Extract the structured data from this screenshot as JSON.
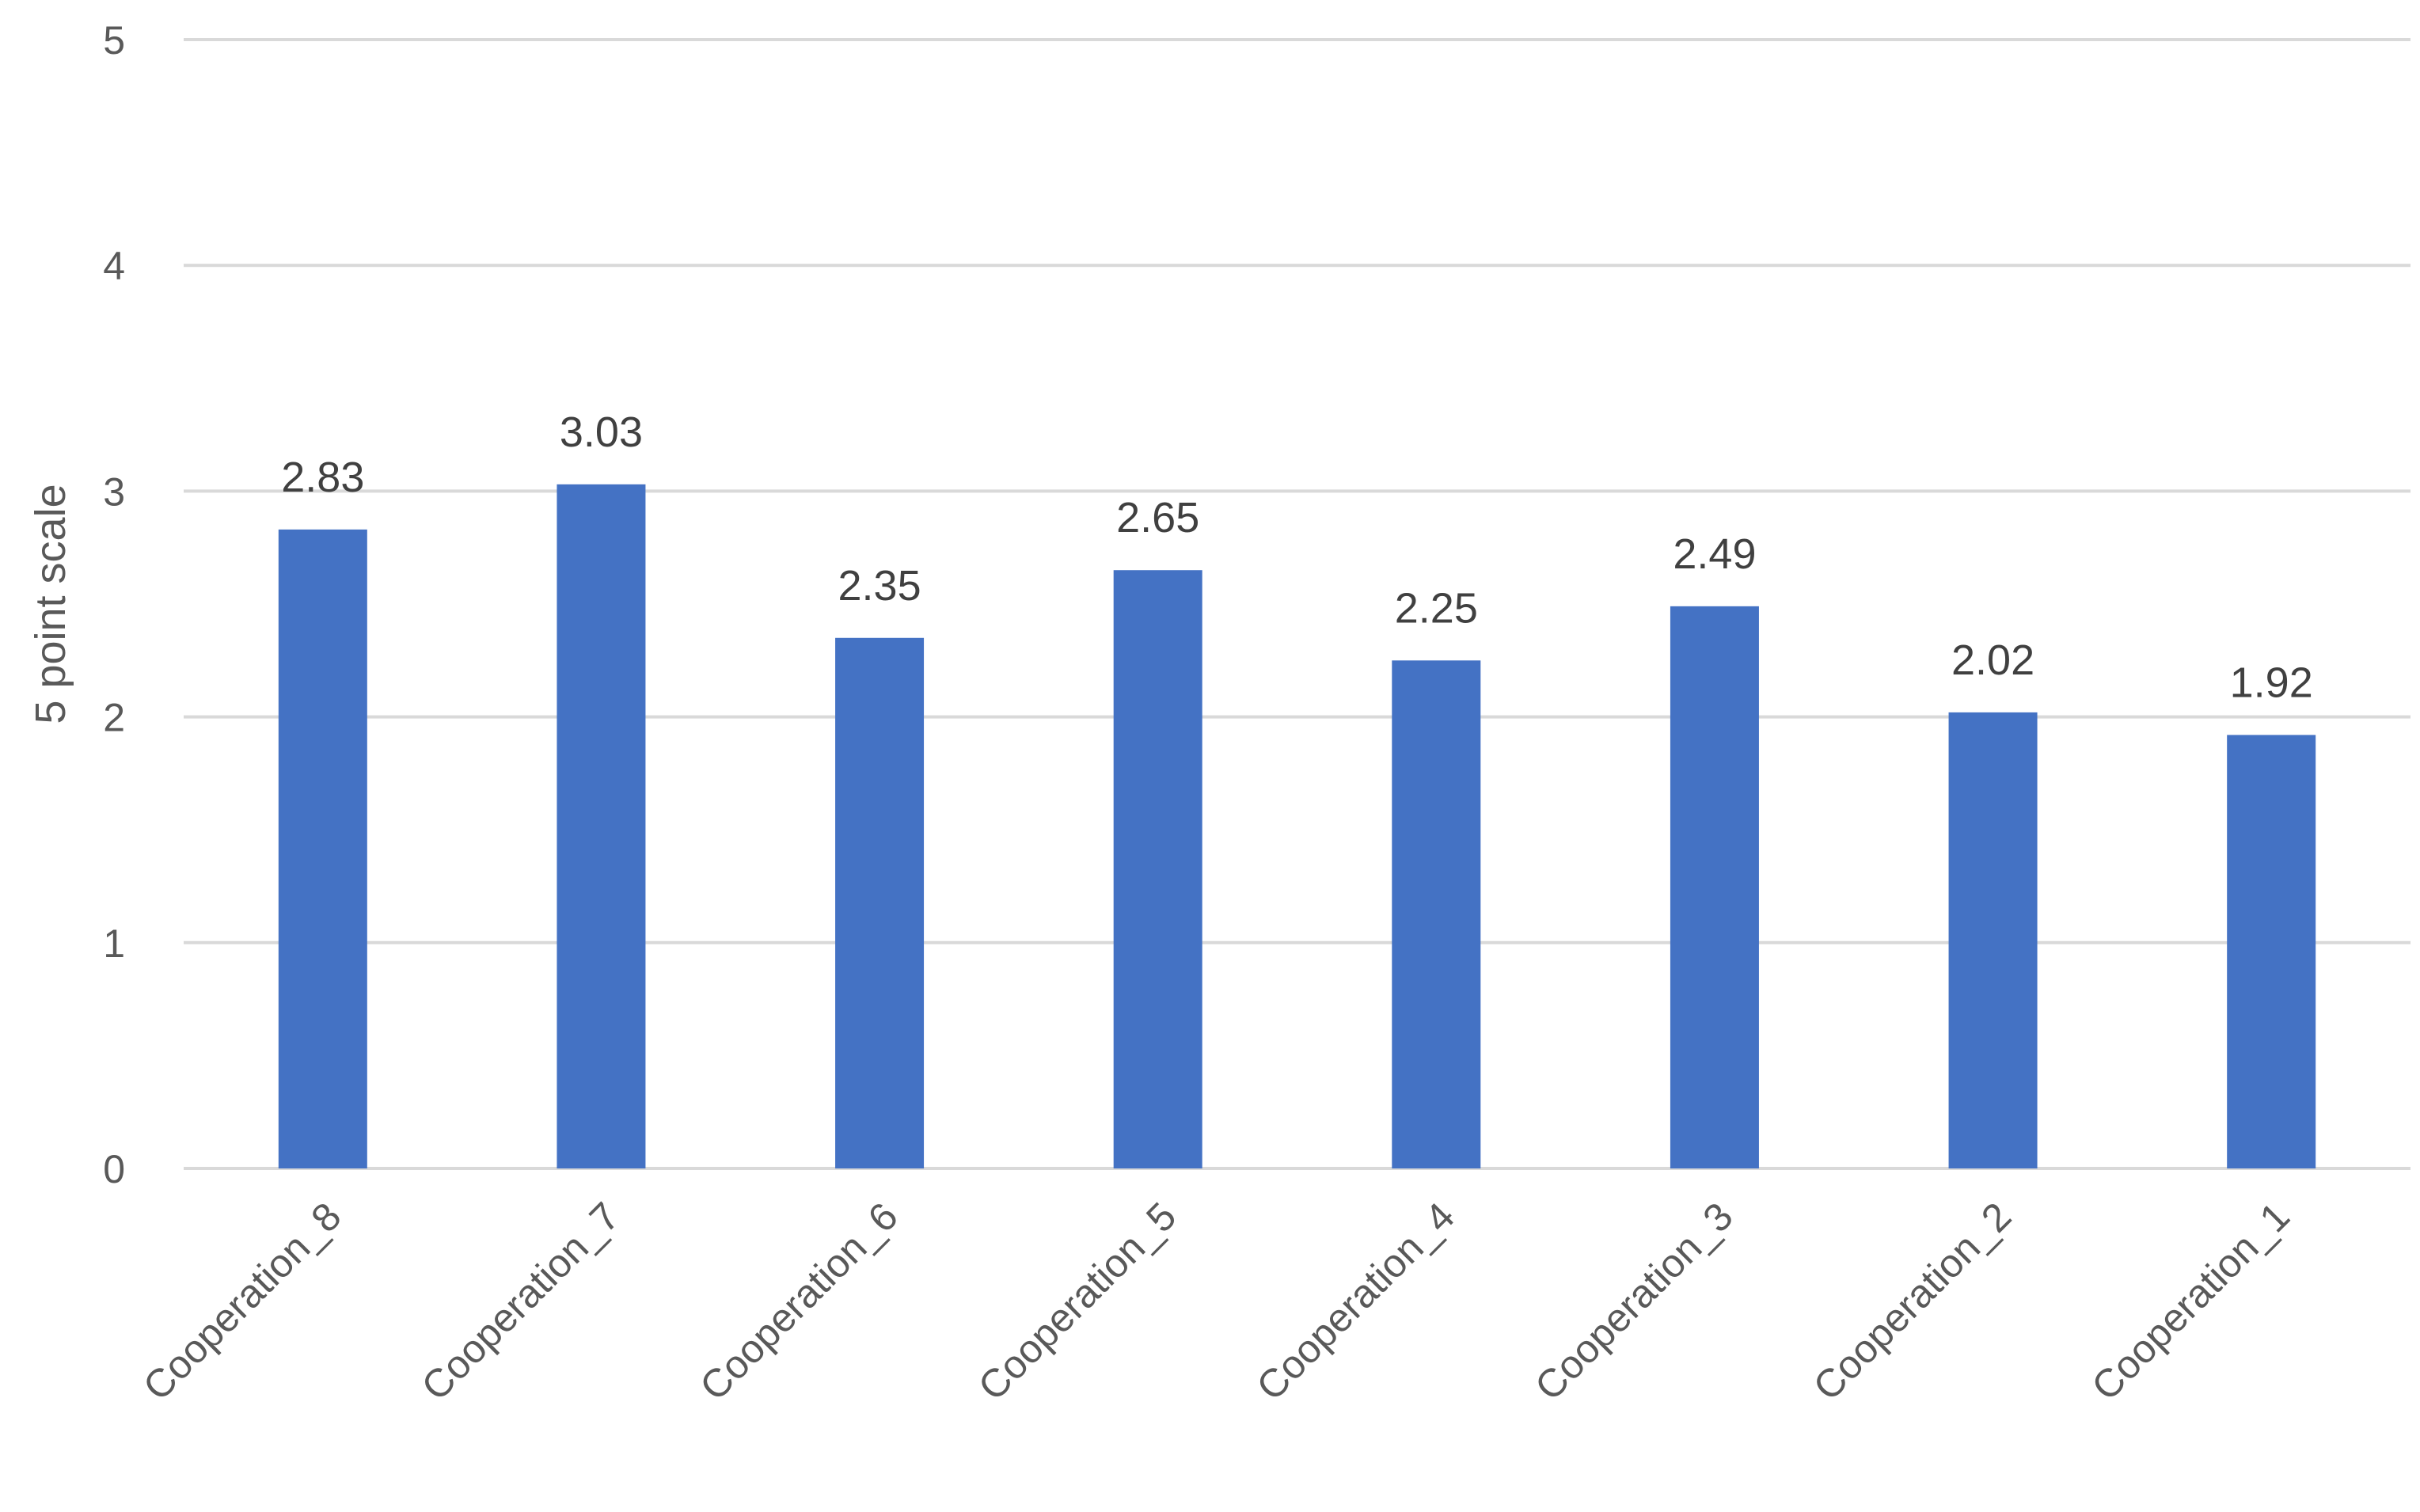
{
  "chart_data": {
    "type": "bar",
    "categories": [
      "Cooperation_8",
      "Cooperation_7",
      "Cooperation_6",
      "Cooperation_5",
      "Cooperation_4",
      "Cooperation_3",
      "Cooperation_2",
      "Cooperation_1"
    ],
    "values": [
      2.83,
      3.03,
      2.35,
      2.65,
      2.25,
      2.49,
      2.02,
      1.92
    ],
    "data_labels": [
      "2.83",
      "3.03",
      "2.35",
      "2.65",
      "2.25",
      "2.49",
      "2.02",
      "1.92"
    ],
    "title": "",
    "xlabel": "",
    "ylabel": "5 point scale",
    "ylim": [
      0,
      5
    ],
    "yticks": [
      "0",
      "1",
      "2",
      "3",
      "4",
      "5"
    ],
    "grid": true,
    "legend": "none",
    "bar_color": "#4472C4"
  }
}
